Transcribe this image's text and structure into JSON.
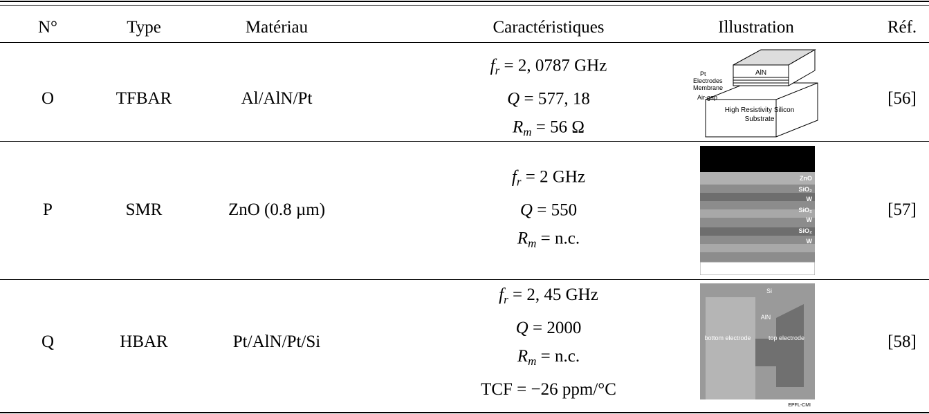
{
  "table": {
    "header": [
      "N°",
      "Type",
      "Matériau",
      "Caractéristiques",
      "Illustration",
      "Réf."
    ],
    "rows": [
      {
        "id": "O",
        "type": "TFBAR",
        "material": "Al/AlN/Pt",
        "characteristics": [
          {
            "var": "f",
            "sub": "r",
            "rest": " = 2, 0787 GHz"
          },
          {
            "var": "Q",
            "rest": " = 577, 18"
          },
          {
            "var": "R",
            "sub": "m",
            "rest": " = 56 Ω"
          }
        ],
        "illustration": {
          "labels": [
            "Pt",
            "Electrodes",
            "Membrane",
            "Air-gap",
            "AlN",
            "High Resistivity Silicon",
            "Substrate"
          ]
        },
        "ref": "[56]"
      },
      {
        "id": "P",
        "type": "SMR",
        "material": "ZnO (0.8 µm)",
        "characteristics": [
          {
            "var": "f",
            "sub": "r",
            "rest": " = 2 GHz"
          },
          {
            "var": "Q",
            "rest": " = 550"
          },
          {
            "var": "R",
            "sub": "m",
            "rest": " = n.c."
          }
        ],
        "illustration": {
          "labels": [
            "ZnO",
            "SiO₂",
            "W",
            "SiO₂",
            "W",
            "SiO₂",
            "W"
          ]
        },
        "ref": "[57]"
      },
      {
        "id": "Q",
        "type": "HBAR",
        "material": "Pt/AlN/Pt/Si",
        "characteristics": [
          {
            "var": "f",
            "sub": "r",
            "rest": " = 2, 45 GHz"
          },
          {
            "var": "Q",
            "rest": " = 2000"
          },
          {
            "var": "R",
            "sub": "m",
            "rest": " = n.c."
          },
          {
            "label": "TCF",
            "rest": " = −26 ppm/°C"
          }
        ],
        "illustration": {
          "labels": [
            "Si",
            "AlN",
            "bottom electrode",
            "top electrode",
            "EPFL-CMI"
          ]
        },
        "ref": "[58]"
      }
    ]
  }
}
